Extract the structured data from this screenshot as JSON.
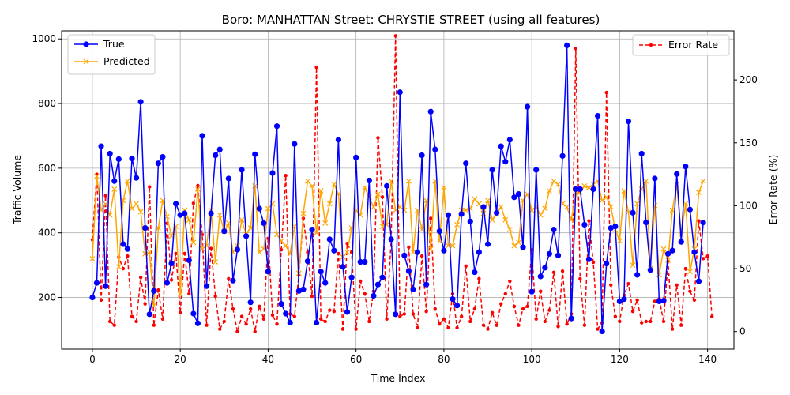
{
  "chart_data": {
    "type": "line",
    "title": "Boro: MANHATTAN Street: CHRYSTIE STREET (using all features)",
    "xlabel": "Time Index",
    "ylabel": "Traffic Volume",
    "y2label": "Error Rate (%)",
    "xlim": [
      -7,
      146
    ],
    "ylim": [
      40,
      1025
    ],
    "y2lim": [
      -14,
      239
    ],
    "xticks": [
      0,
      20,
      40,
      60,
      80,
      100,
      120,
      140
    ],
    "yticks": [
      200,
      400,
      600,
      800,
      1000
    ],
    "y2ticks": [
      0,
      50,
      100,
      150,
      200
    ],
    "grid": true,
    "legend_left": {
      "position": "upper-left",
      "entries": [
        "True",
        "Predicted"
      ]
    },
    "legend_right": {
      "position": "upper-right",
      "entries": [
        "Error Rate"
      ]
    },
    "colors": {
      "true": "#0000ff",
      "predicted": "#ffa500",
      "error": "#ff0000",
      "grid": "#b0b0b0"
    },
    "series": [
      {
        "name": "True",
        "axis": "left",
        "values": [
          200,
          245,
          668,
          235,
          645,
          560,
          628,
          365,
          350,
          630,
          570,
          805,
          415,
          148,
          220,
          615,
          635,
          245,
          305,
          490,
          455,
          460,
          315,
          150,
          120,
          700,
          235,
          460,
          640,
          658,
          405,
          568,
          252,
          348,
          595,
          390,
          185,
          643,
          475,
          430,
          280,
          585,
          730,
          180,
          150,
          122,
          675,
          220,
          225,
          312,
          410,
          122,
          280,
          245,
          380,
          345,
          688,
          295,
          155,
          262,
          633,
          310,
          310,
          562,
          205,
          240,
          262,
          545,
          380,
          148,
          835,
          330,
          282,
          225,
          340,
          640,
          240,
          775,
          658,
          405,
          345,
          455,
          195,
          175,
          458,
          615,
          435,
          278,
          340,
          480,
          365,
          595,
          462,
          668,
          620,
          688,
          510,
          520,
          355,
          790,
          218,
          595,
          265,
          292,
          335,
          410,
          330,
          638,
          980,
          135,
          535,
          535,
          425,
          318,
          535,
          762,
          95,
          305,
          415,
          420,
          188,
          195,
          745,
          462,
          270,
          645,
          432,
          285,
          568,
          188,
          190,
          335,
          345,
          582,
          372,
          605,
          472,
          340,
          250,
          432
        ]
      },
      {
        "name": "Predicted",
        "axis": "left",
        "values": [
          320,
          575,
          470,
          490,
          455,
          535,
          295,
          500,
          560,
          475,
          490,
          465,
          335,
          340,
          175,
          415,
          500,
          450,
          390,
          420,
          210,
          470,
          440,
          370,
          535,
          350,
          360,
          470,
          310,
          455,
          405,
          430,
          340,
          360,
          440,
          395,
          415,
          545,
          340,
          350,
          475,
          490,
          395,
          375,
          360,
          335,
          420,
          275,
          460,
          560,
          545,
          400,
          530,
          430,
          490,
          550,
          520,
          325,
          340,
          415,
          470,
          455,
          540,
          510,
          480,
          520,
          420,
          425,
          560,
          470,
          480,
          470,
          560,
          340,
          470,
          410,
          500,
          350,
          560,
          375,
          540,
          360,
          360,
          425,
          470,
          470,
          475,
          505,
          490,
          460,
          500,
          440,
          460,
          480,
          440,
          410,
          360,
          370,
          500,
          520,
          470,
          480,
          455,
          475,
          530,
          560,
          550,
          490,
          480,
          440,
          520,
          525,
          545,
          540,
          550,
          560,
          500,
          510,
          480,
          410,
          375,
          530,
          465,
          300,
          490,
          535,
          560,
          290,
          485,
          270,
          350,
          315,
          470,
          550,
          395,
          490,
          280,
          350,
          525,
          560
        ]
      },
      {
        "name": "Error Rate",
        "axis": "right",
        "values": [
          73,
          125,
          25,
          108,
          8,
          5,
          59,
          50,
          60,
          12,
          8,
          43,
          22,
          115,
          5,
          33,
          10,
          86,
          41,
          62,
          15,
          62,
          30,
          102,
          116,
          77,
          5,
          66,
          28,
          2,
          8,
          42,
          18,
          0,
          12,
          6,
          18,
          0,
          20,
          10,
          74,
          13,
          6,
          65,
          124,
          14,
          12,
          45,
          90,
          63,
          28,
          210,
          10,
          8,
          17,
          16,
          62,
          2,
          70,
          63,
          2,
          40,
          30,
          8,
          32,
          154,
          107,
          10,
          74,
          235,
          12,
          14,
          67,
          14,
          3,
          60,
          16,
          90,
          18,
          6,
          10,
          3,
          30,
          3,
          12,
          52,
          8,
          18,
          42,
          5,
          2,
          15,
          5,
          22,
          30,
          40,
          20,
          5,
          18,
          20,
          65,
          10,
          32,
          8,
          17,
          47,
          4,
          48,
          6,
          14,
          225,
          42,
          5,
          88,
          55,
          2,
          7,
          190,
          37,
          12,
          8,
          29,
          38,
          16,
          25,
          7,
          8,
          8,
          24,
          26,
          8,
          56,
          2,
          37,
          5,
          50,
          32,
          25,
          88,
          58,
          60,
          12
        ]
      }
    ]
  }
}
